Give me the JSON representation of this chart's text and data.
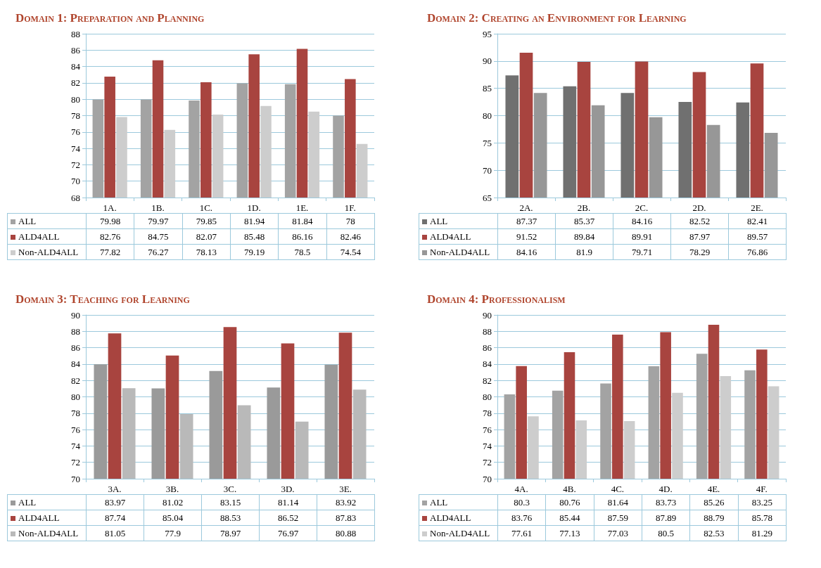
{
  "chart_data": [
    {
      "type": "bar",
      "title": "Domain 1: Preparation and Planning",
      "categories": [
        "1A.",
        "1B.",
        "1C.",
        "1D.",
        "1E.",
        "1F."
      ],
      "ylim": [
        68,
        88
      ],
      "yticks": [
        68,
        70,
        72,
        74,
        76,
        78,
        80,
        82,
        84,
        86,
        88
      ],
      "grid": "y",
      "legend": "bottom",
      "data_labels": true,
      "series": [
        {
          "name": "ALL",
          "color": "#a3a3a3",
          "values": [
            79.98,
            79.97,
            79.85,
            81.94,
            81.84,
            78
          ]
        },
        {
          "name": "ALD4ALL",
          "color": "#a8443f",
          "values": [
            82.76,
            84.75,
            82.07,
            85.48,
            86.16,
            82.46
          ]
        },
        {
          "name": "Non-ALD4ALL",
          "color": "#cdcdcd",
          "values": [
            77.82,
            76.27,
            78.13,
            79.19,
            78.5,
            74.54
          ]
        }
      ]
    },
    {
      "type": "bar",
      "title": "Domain 2: Creating an Environment for Learning",
      "categories": [
        "2A.",
        "2B.",
        "2C.",
        "2D.",
        "2E."
      ],
      "ylim": [
        65,
        95
      ],
      "yticks": [
        65,
        70,
        75,
        80,
        85,
        90,
        95
      ],
      "grid": "y",
      "legend": "bottom",
      "data_labels": true,
      "series": [
        {
          "name": "ALL",
          "color": "#707070",
          "values": [
            87.37,
            85.37,
            84.16,
            82.52,
            82.41
          ]
        },
        {
          "name": "ALD4ALL",
          "color": "#a8443f",
          "values": [
            91.52,
            89.84,
            89.91,
            87.97,
            89.57
          ]
        },
        {
          "name": "Non-ALD4ALL",
          "color": "#979797",
          "values": [
            84.16,
            81.9,
            79.71,
            78.29,
            76.86
          ]
        }
      ]
    },
    {
      "type": "bar",
      "title": "Domain 3: Teaching for Learning",
      "categories": [
        "3A.",
        "3B.",
        "3C.",
        "3D.",
        "3E."
      ],
      "ylim": [
        70,
        90
      ],
      "yticks": [
        70,
        72,
        74,
        76,
        78,
        80,
        82,
        84,
        86,
        88,
        90
      ],
      "grid": "y",
      "legend": "bottom",
      "data_labels": true,
      "series": [
        {
          "name": "ALL",
          "color": "#9a9a9a",
          "values": [
            83.97,
            81.02,
            83.15,
            81.14,
            83.92
          ]
        },
        {
          "name": "ALD4ALL",
          "color": "#a8443f",
          "values": [
            87.74,
            85.04,
            88.53,
            86.52,
            87.83
          ]
        },
        {
          "name": "Non-ALD4ALL",
          "color": "#b9b9b9",
          "values": [
            81.05,
            77.9,
            78.97,
            76.97,
            80.88
          ]
        }
      ]
    },
    {
      "type": "bar",
      "title": "Domain 4: Professionalism",
      "categories": [
        "4A.",
        "4B.",
        "4C.",
        "4D.",
        "4E.",
        "4F."
      ],
      "ylim": [
        70,
        90
      ],
      "yticks": [
        70,
        72,
        74,
        76,
        78,
        80,
        82,
        84,
        86,
        88,
        90
      ],
      "grid": "y",
      "legend": "bottom",
      "data_labels": true,
      "series": [
        {
          "name": "ALL",
          "color": "#a3a3a3",
          "values": [
            80.3,
            80.76,
            81.64,
            83.73,
            85.26,
            83.25
          ]
        },
        {
          "name": "ALD4ALL",
          "color": "#a8443f",
          "values": [
            83.76,
            85.44,
            87.59,
            87.89,
            88.79,
            85.78
          ]
        },
        {
          "name": "Non-ALD4ALL",
          "color": "#cdcdcd",
          "values": [
            77.61,
            77.13,
            77.03,
            80.5,
            82.53,
            81.29
          ]
        }
      ]
    }
  ]
}
